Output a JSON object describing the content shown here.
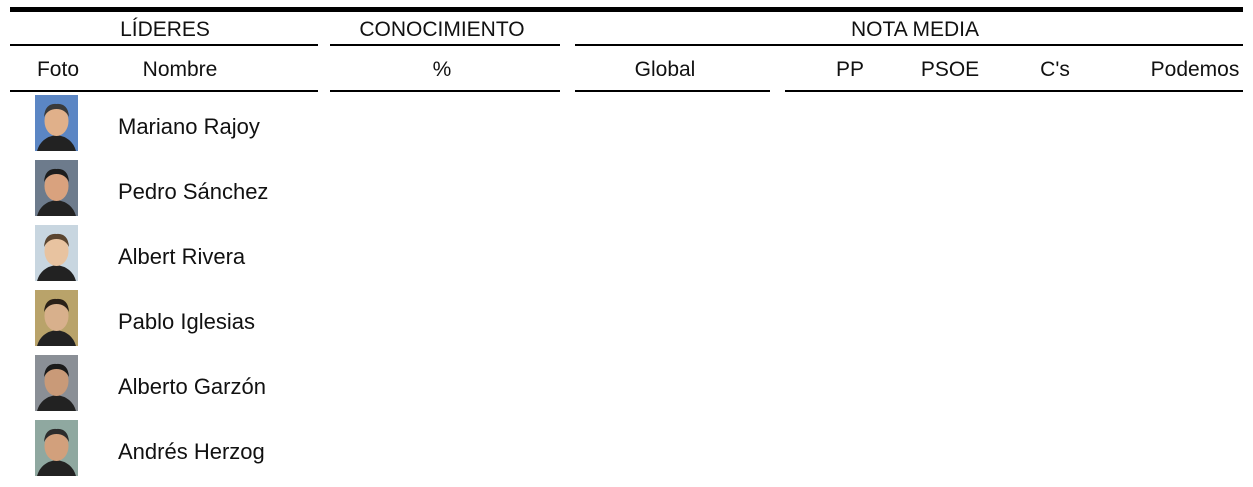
{
  "table": {
    "group_headers": [
      "LÍDERES",
      "CONOCIMIENTO",
      "NOTA MEDIA"
    ],
    "column_headers": [
      "Foto",
      "Nombre",
      "%",
      "Global",
      "PP",
      "PSOE",
      "C's",
      "Podemos"
    ],
    "rows": [
      {
        "name": "Mariano Rajoy"
      },
      {
        "name": "Pedro Sánchez"
      },
      {
        "name": "Albert Rivera"
      },
      {
        "name": "Pablo Iglesias"
      },
      {
        "name": "Alberto Garzón"
      },
      {
        "name": "Andrés Herzog"
      }
    ]
  }
}
